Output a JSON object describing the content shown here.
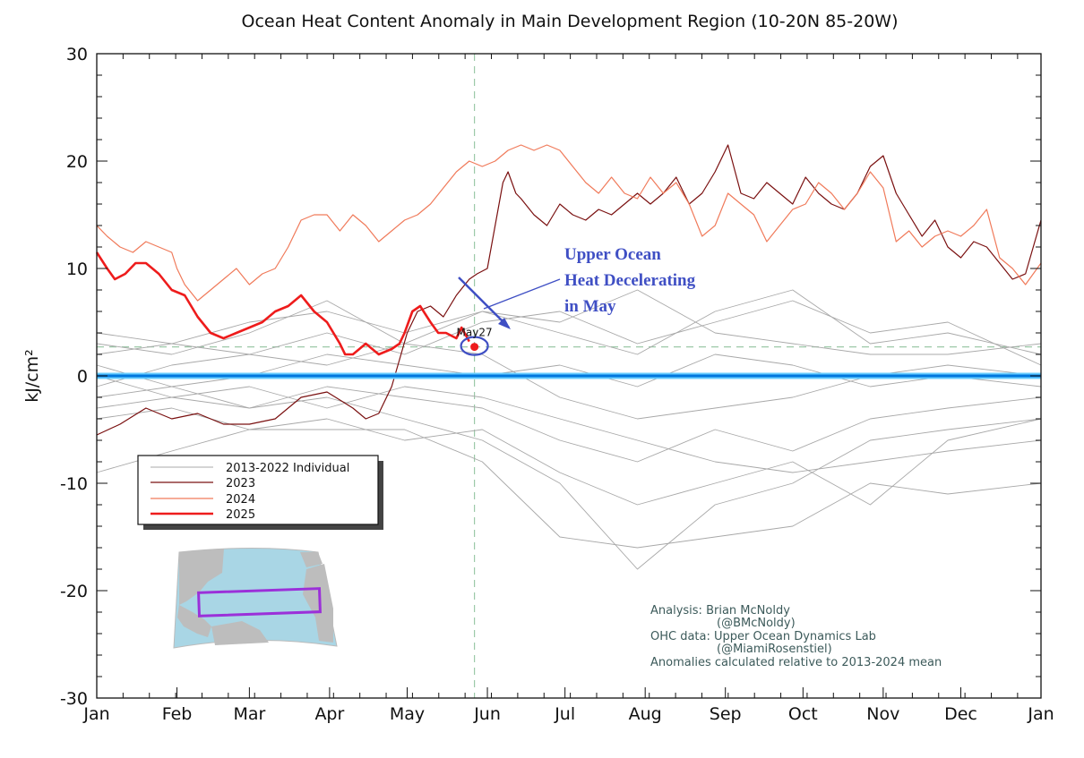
{
  "chart_data": {
    "type": "line",
    "title": "Ocean Heat Content Anomaly in Main Development Region (10-20N 85-20W)",
    "ylabel": "kJ/cm²",
    "ylim": [
      -30,
      30
    ],
    "yticks": [
      -30,
      -20,
      -10,
      0,
      10,
      20,
      30
    ],
    "xlim": [
      1,
      366
    ],
    "month_ticks": [
      {
        "label": "Jan",
        "day": 1
      },
      {
        "label": "Feb",
        "day": 32
      },
      {
        "label": "Mar",
        "day": 60
      },
      {
        "label": "Apr",
        "day": 91
      },
      {
        "label": "May",
        "day": 121
      },
      {
        "label": "Jun",
        "day": 152
      },
      {
        "label": "Jul",
        "day": 182
      },
      {
        "label": "Aug",
        "day": 213
      },
      {
        "label": "Sep",
        "day": 244
      },
      {
        "label": "Oct",
        "day": 274
      },
      {
        "label": "Nov",
        "day": 305
      },
      {
        "label": "Dec",
        "day": 335
      },
      {
        "label": "Jan",
        "day": 366
      }
    ],
    "grid": false,
    "legend_position": "lower-left",
    "legend": [
      {
        "label": "2013-2022 Individual",
        "color": "#a8a8a8"
      },
      {
        "label": "2023",
        "color": "#7a1010"
      },
      {
        "label": "2024",
        "color": "#f07a5a"
      },
      {
        "label": "2025",
        "color": "#ee1c1c"
      }
    ],
    "series": [
      {
        "name": "2023",
        "color": "#7a1010",
        "x": [
          1,
          10,
          20,
          30,
          40,
          50,
          60,
          70,
          80,
          90,
          100,
          105,
          110,
          115,
          118,
          121,
          125,
          130,
          135,
          140,
          145,
          148,
          152,
          155,
          158,
          160,
          163,
          165,
          170,
          175,
          180,
          185,
          190,
          195,
          200,
          205,
          210,
          215,
          220,
          225,
          230,
          235,
          240,
          245,
          250,
          255,
          260,
          265,
          270,
          275,
          280,
          285,
          290,
          295,
          300,
          305,
          310,
          315,
          320,
          325,
          330,
          335,
          340,
          345,
          350,
          355,
          360,
          366
        ],
        "y": [
          -5.5,
          -4.5,
          -3,
          -4,
          -3.5,
          -4.5,
          -4.5,
          -4,
          -2,
          -1.5,
          -3,
          -4,
          -3.5,
          -1,
          1.5,
          4,
          6,
          6.5,
          5.5,
          7.5,
          9,
          9.5,
          10,
          14,
          18,
          19,
          17,
          16.5,
          15,
          14,
          16,
          15,
          14.5,
          15.5,
          15,
          16,
          17,
          16,
          17,
          18.5,
          16,
          17,
          19,
          21.5,
          17,
          16.5,
          18,
          17,
          16,
          18.5,
          17,
          16,
          15.5,
          17,
          19.5,
          20.5,
          17,
          15,
          13,
          14.5,
          12,
          11,
          12.5,
          12,
          10.5,
          9,
          9.5,
          14.5
        ]
      },
      {
        "name": "2024",
        "color": "#f07a5a",
        "x": [
          1,
          5,
          10,
          15,
          20,
          25,
          30,
          32,
          35,
          40,
          45,
          50,
          55,
          60,
          65,
          70,
          75,
          80,
          85,
          90,
          95,
          100,
          105,
          110,
          115,
          120,
          125,
          130,
          135,
          140,
          145,
          150,
          155,
          160,
          165,
          170,
          175,
          180,
          185,
          190,
          195,
          200,
          205,
          210,
          215,
          220,
          225,
          230,
          235,
          240,
          245,
          250,
          255,
          260,
          265,
          270,
          275,
          280,
          285,
          290,
          295,
          300,
          305,
          310,
          315,
          320,
          325,
          330,
          335,
          340,
          345,
          350,
          355,
          360,
          366
        ],
        "y": [
          14,
          13,
          12,
          11.5,
          12.5,
          12,
          11.5,
          10,
          8.5,
          7,
          8,
          9,
          10,
          8.5,
          9.5,
          10,
          12,
          14.5,
          15,
          15,
          13.5,
          15,
          14,
          12.5,
          13.5,
          14.5,
          15,
          16,
          17.5,
          19,
          20,
          19.5,
          20,
          21,
          21.5,
          21,
          21.5,
          21,
          19.5,
          18,
          17,
          18.5,
          17,
          16.5,
          18.5,
          17,
          18,
          16,
          13,
          14,
          17,
          16,
          15,
          12.5,
          14,
          15.5,
          16,
          18,
          17,
          15.5,
          17,
          19,
          17.5,
          12.5,
          13.5,
          12,
          13,
          13.5,
          13,
          14,
          15.5,
          11,
          10,
          8.5,
          10.5
        ]
      },
      {
        "name": "2025",
        "color": "#ee1c1c",
        "x": [
          1,
          5,
          8,
          12,
          16,
          20,
          25,
          30,
          35,
          40,
          45,
          50,
          55,
          60,
          65,
          70,
          75,
          80,
          85,
          90,
          95,
          97,
          100,
          105,
          110,
          115,
          118,
          120,
          123,
          126,
          130,
          133,
          136,
          140,
          142,
          145
        ],
        "y": [
          11.5,
          10,
          9,
          9.5,
          10.5,
          10.5,
          9.5,
          8,
          7.5,
          5.5,
          4,
          3.5,
          4,
          4.5,
          5,
          6,
          6.5,
          7.5,
          6,
          5,
          3,
          2,
          2,
          3,
          2,
          2.5,
          3,
          4,
          6,
          6.5,
          5,
          4,
          4,
          3.5,
          4.5,
          3.2
        ]
      },
      {
        "name": "",
        "color": "#a8a8a8",
        "x": [
          1,
          30,
          60,
          90,
          120,
          150,
          180,
          210,
          240,
          270,
          300,
          330,
          366
        ],
        "y": [
          4,
          3,
          2,
          4,
          2,
          5,
          6,
          3,
          5,
          7,
          4,
          5,
          1
        ]
      },
      {
        "name": "",
        "color": "#a8a8a8",
        "x": [
          1,
          30,
          60,
          90,
          120,
          150,
          180,
          210,
          240,
          270,
          300,
          330,
          366
        ],
        "y": [
          -9,
          -7,
          -5,
          -5,
          -5,
          -8,
          -15,
          -16,
          -15,
          -14,
          -10,
          -11,
          -10
        ]
      },
      {
        "name": "",
        "color": "#a8a8a8",
        "x": [
          1,
          30,
          60,
          90,
          120,
          150,
          180,
          210,
          240,
          270,
          300,
          330,
          366
        ],
        "y": [
          -2,
          -1,
          -3,
          -2,
          -4,
          -6,
          -10,
          -18,
          -12,
          -10,
          -6,
          -5,
          -4
        ]
      },
      {
        "name": "",
        "color": "#a8a8a8",
        "x": [
          1,
          30,
          60,
          90,
          120,
          150,
          180,
          210,
          240,
          270,
          300,
          330,
          366
        ],
        "y": [
          0,
          -2,
          -3,
          -1,
          -2,
          -3,
          -6,
          -8,
          -5,
          -7,
          -4,
          -3,
          -2
        ]
      },
      {
        "name": "",
        "color": "#a8a8a8",
        "x": [
          1,
          30,
          60,
          90,
          120,
          150,
          180,
          210,
          240,
          270,
          300,
          330,
          366
        ],
        "y": [
          -1,
          1,
          2,
          1,
          3,
          2,
          -2,
          -4,
          -3,
          -2,
          0,
          1,
          0
        ]
      },
      {
        "name": "",
        "color": "#a8a8a8",
        "x": [
          1,
          30,
          60,
          90,
          120,
          150,
          180,
          210,
          240,
          270,
          300,
          330,
          366
        ],
        "y": [
          2,
          3,
          5,
          6,
          4,
          6,
          5,
          8,
          4,
          3,
          2,
          2,
          3
        ]
      },
      {
        "name": "",
        "color": "#a8a8a8",
        "x": [
          1,
          30,
          60,
          90,
          120,
          150,
          180,
          210,
          240,
          270,
          300,
          330,
          366
        ],
        "y": [
          -3,
          -2,
          -1,
          -3,
          -1,
          -2,
          -4,
          -6,
          -8,
          -9,
          -8,
          -7,
          -6
        ]
      },
      {
        "name": "",
        "color": "#a8a8a8",
        "x": [
          1,
          30,
          60,
          90,
          120,
          150,
          180,
          210,
          240,
          270,
          300,
          330,
          366
        ],
        "y": [
          1,
          -1,
          0,
          2,
          1,
          0,
          1,
          -1,
          2,
          1,
          -1,
          0,
          -1
        ]
      },
      {
        "name": "",
        "color": "#a8a8a8",
        "x": [
          1,
          30,
          60,
          90,
          120,
          150,
          180,
          210,
          240,
          270,
          300,
          330,
          366
        ],
        "y": [
          -4,
          -3,
          -5,
          -4,
          -6,
          -5,
          -9,
          -12,
          -10,
          -8,
          -12,
          -6,
          -4
        ]
      },
      {
        "name": "",
        "color": "#a8a8a8",
        "x": [
          1,
          30,
          60,
          90,
          120,
          150,
          180,
          210,
          240,
          270,
          300,
          330,
          366
        ],
        "y": [
          3,
          2,
          4,
          7,
          3,
          6,
          4,
          2,
          6,
          8,
          3,
          4,
          2
        ]
      }
    ],
    "zero_line_color": "#0077dd",
    "reference_hline": 2.7,
    "reference_vline_day": 147,
    "marker": {
      "day": 147,
      "value": 2.7,
      "label": "May27",
      "color": "#ee1c1c"
    },
    "annotation": {
      "lines": [
        "Upper Ocean",
        "Heat Decelerating",
        "in May"
      ],
      "color": "#3f4fc4"
    },
    "credits": [
      "Analysis: Brian McNoldy",
      "(@BMcNoldy)",
      "OHC data: Upper Ocean Dynamics Lab",
      "(@MiamiRosenstiel)",
      "Anomalies calculated relative to 2013-2024 mean"
    ]
  }
}
